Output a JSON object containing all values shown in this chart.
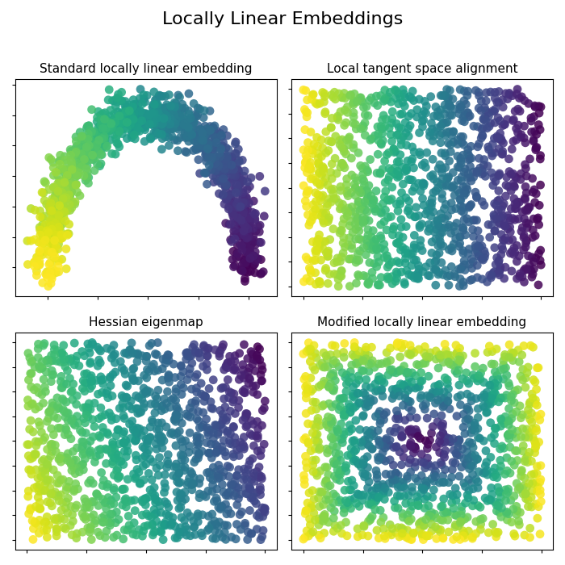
{
  "title": "Locally Linear Embeddings",
  "subplot_titles": [
    "Standard locally linear embedding",
    "Local tangent space alignment",
    "Hessian eigenmap",
    "Modified locally linear embedding"
  ],
  "n_points": 1200,
  "seed": 42,
  "scatter_size": 60,
  "scatter_alpha": 0.85,
  "cmap": "viridis",
  "title_fontsize": 16,
  "subtitle_fontsize": 11,
  "figsize": [
    7.0,
    7.0
  ],
  "dpi": 100
}
